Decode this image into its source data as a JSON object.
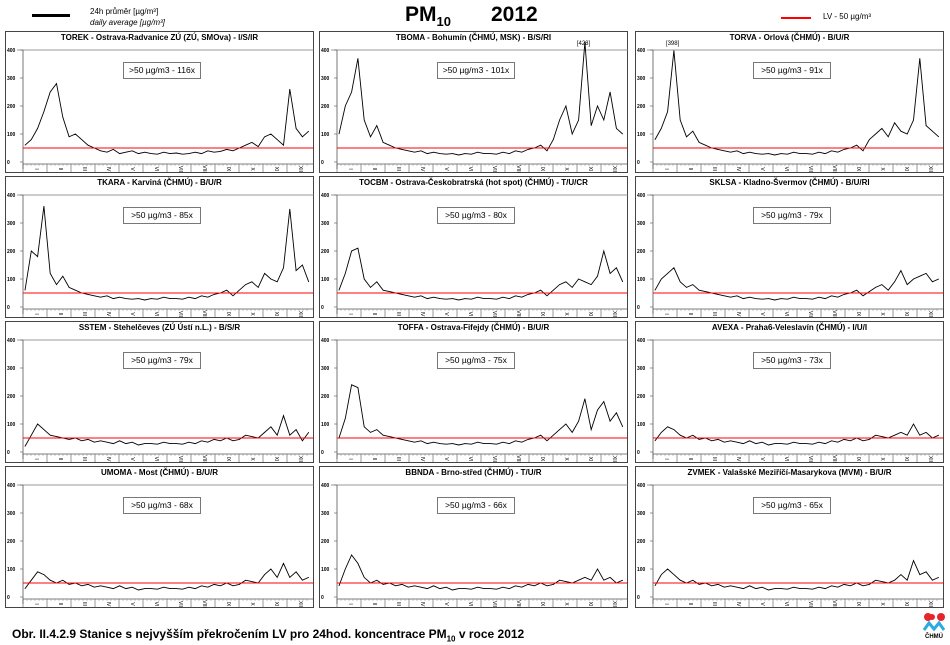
{
  "header": {
    "legend_cz": "24h průměr [µg/m³]",
    "legend_en": "daily average [µg/m³]",
    "title_main": "PM",
    "title_sub": "10",
    "title_year": "2012",
    "lv_label": "LV - 50 µg/m³"
  },
  "caption": {
    "prefix": "Obr. II.4.2.9  Stanice s nejvyšším překročením LV pro 24hod. koncentrace PM",
    "sub": "10",
    "suffix": " v roce 2012"
  },
  "logo": {
    "text": "ČHMÚ"
  },
  "colors": {
    "series": "#000000",
    "limit": "#ff0000"
  },
  "chart_data": {
    "type": "line",
    "title": "PM10 2012",
    "ylabel": "µg/m³",
    "ylim": [
      0,
      400
    ],
    "yticks": [
      "0",
      "100",
      "200",
      "300",
      "400"
    ],
    "months": [
      "I",
      "II",
      "III",
      "IV",
      "V",
      "VI",
      "VII",
      "VIII",
      "IX",
      "X",
      "XI",
      "XII"
    ],
    "limit_value": 50,
    "sample_interval_days": 8,
    "panels": [
      {
        "title": "TOREK - Ostrava-Radvanice ZÚ (ZÚ, SMOva) - I/S/IR",
        "exceed": ">50 µg/m3 - 116x",
        "values": [
          60,
          80,
          120,
          180,
          250,
          280,
          160,
          90,
          100,
          80,
          60,
          50,
          40,
          35,
          45,
          30,
          35,
          40,
          30,
          35,
          30,
          28,
          35,
          30,
          32,
          28,
          30,
          35,
          30,
          40,
          35,
          38,
          45,
          40,
          50,
          60,
          70,
          55,
          90,
          100,
          80,
          60,
          260,
          120,
          90,
          110
        ]
      },
      {
        "title": "TBOMA - Bohumín (ČHMÚ, MSK) - B/S/RI",
        "exceed": ">50 µg/m3 - 101x",
        "peak_label": "[428]",
        "values": [
          100,
          200,
          250,
          370,
          150,
          90,
          130,
          70,
          60,
          50,
          45,
          40,
          35,
          40,
          30,
          35,
          30,
          28,
          30,
          25,
          30,
          28,
          35,
          30,
          30,
          28,
          35,
          30,
          40,
          35,
          45,
          50,
          60,
          40,
          80,
          150,
          200,
          100,
          150,
          428,
          130,
          200,
          150,
          250,
          120,
          100
        ]
      },
      {
        "title": "TORVA - Orlová (ČHMÚ) - B/U/R",
        "exceed": ">50 µg/m3 - 91x",
        "peak_label": "[398]",
        "values": [
          80,
          120,
          180,
          398,
          150,
          90,
          110,
          70,
          60,
          50,
          45,
          40,
          35,
          40,
          30,
          35,
          30,
          28,
          30,
          25,
          30,
          28,
          35,
          30,
          30,
          28,
          35,
          30,
          40,
          35,
          45,
          50,
          60,
          40,
          80,
          100,
          120,
          90,
          140,
          110,
          100,
          150,
          370,
          130,
          110,
          90
        ]
      },
      {
        "title": "TKARA - Karviná (ČHMÚ) - B/U/R",
        "exceed": ">50 µg/m3 - 85x",
        "values": [
          60,
          200,
          180,
          360,
          120,
          80,
          110,
          70,
          60,
          50,
          45,
          40,
          35,
          40,
          30,
          35,
          30,
          28,
          30,
          25,
          30,
          28,
          35,
          30,
          30,
          28,
          35,
          30,
          40,
          35,
          45,
          50,
          60,
          40,
          60,
          80,
          90,
          70,
          120,
          100,
          90,
          140,
          350,
          130,
          150,
          90
        ]
      },
      {
        "title": "TOCBM - Ostrava-Českobratrská (hot spot) (ČHMÚ) - T/U/CR",
        "exceed": ">50 µg/m3 - 80x",
        "values": [
          60,
          120,
          200,
          210,
          100,
          70,
          90,
          60,
          55,
          50,
          45,
          40,
          35,
          40,
          30,
          35,
          30,
          28,
          30,
          25,
          30,
          28,
          35,
          30,
          30,
          28,
          35,
          30,
          40,
          35,
          45,
          50,
          60,
          40,
          60,
          80,
          90,
          70,
          100,
          90,
          80,
          110,
          200,
          120,
          140,
          90
        ]
      },
      {
        "title": "SKLSA - Kladno-Švermov (ČHMÚ) - B/U/RI",
        "exceed": ">50 µg/m3 - 79x",
        "values": [
          60,
          100,
          120,
          140,
          90,
          70,
          80,
          60,
          55,
          50,
          45,
          40,
          35,
          40,
          30,
          35,
          30,
          28,
          30,
          25,
          30,
          28,
          35,
          30,
          30,
          28,
          35,
          30,
          40,
          35,
          45,
          50,
          60,
          40,
          55,
          70,
          80,
          60,
          90,
          130,
          80,
          100,
          110,
          120,
          90,
          100
        ]
      },
      {
        "title": "SSTEM - Stehelčeves (ZÚ Ústí n.L.) - B/S/R",
        "exceed": ">50 µg/m3 - 79x",
        "values": [
          20,
          60,
          100,
          80,
          60,
          55,
          50,
          45,
          50,
          40,
          45,
          35,
          40,
          35,
          30,
          40,
          30,
          35,
          25,
          30,
          30,
          28,
          35,
          30,
          30,
          28,
          35,
          30,
          40,
          35,
          45,
          40,
          50,
          40,
          45,
          60,
          55,
          50,
          70,
          90,
          60,
          130,
          60,
          80,
          40,
          70
        ]
      },
      {
        "title": "TOFFA - Ostrava-Fifejdy (ČHMÚ) - B/U/R",
        "exceed": ">50 µg/m3 - 75x",
        "values": [
          50,
          120,
          240,
          230,
          90,
          70,
          80,
          60,
          55,
          50,
          45,
          40,
          35,
          40,
          30,
          35,
          30,
          28,
          30,
          25,
          30,
          28,
          35,
          30,
          30,
          28,
          35,
          30,
          40,
          35,
          45,
          50,
          60,
          40,
          60,
          80,
          100,
          70,
          110,
          190,
          80,
          150,
          180,
          110,
          140,
          90
        ]
      },
      {
        "title": "AVEXA - Praha6-Veleslavín (ČHMÚ) - I/U/I",
        "exceed": ">50 µg/m3 - 73x",
        "values": [
          40,
          70,
          90,
          80,
          60,
          50,
          60,
          45,
          50,
          40,
          45,
          35,
          40,
          35,
          30,
          40,
          30,
          35,
          25,
          30,
          30,
          28,
          35,
          30,
          30,
          28,
          35,
          30,
          40,
          35,
          45,
          40,
          50,
          40,
          45,
          60,
          55,
          50,
          60,
          70,
          60,
          100,
          60,
          70,
          50,
          60
        ]
      },
      {
        "title": "UMOMA - Most (ČHMÚ) - B/U/R",
        "exceed": ">50 µg/m3 - 68x",
        "values": [
          30,
          60,
          90,
          80,
          60,
          50,
          60,
          45,
          50,
          40,
          45,
          35,
          40,
          35,
          30,
          40,
          30,
          35,
          25,
          30,
          30,
          28,
          35,
          30,
          30,
          28,
          35,
          30,
          40,
          35,
          45,
          40,
          50,
          40,
          45,
          60,
          55,
          50,
          80,
          100,
          70,
          120,
          70,
          90,
          60,
          70
        ]
      },
      {
        "title": "BBNDA - Brno-střed (ČHMÚ) - T/U/R",
        "exceed": ">50 µg/m3 - 66x",
        "values": [
          40,
          100,
          150,
          120,
          70,
          50,
          60,
          45,
          50,
          40,
          45,
          35,
          40,
          35,
          30,
          40,
          30,
          35,
          25,
          30,
          30,
          28,
          35,
          30,
          30,
          28,
          35,
          30,
          40,
          35,
          45,
          40,
          50,
          40,
          45,
          60,
          55,
          50,
          60,
          70,
          60,
          100,
          60,
          70,
          50,
          60
        ]
      },
      {
        "title": "ZVMEK - Valašské Meziříčí-Masarykova (MVM) - B/U/R",
        "exceed": ">50 µg/m3 - 65x",
        "values": [
          40,
          80,
          100,
          80,
          60,
          50,
          60,
          45,
          50,
          40,
          45,
          35,
          40,
          35,
          30,
          40,
          30,
          35,
          25,
          30,
          30,
          28,
          35,
          30,
          30,
          28,
          35,
          30,
          40,
          35,
          45,
          40,
          50,
          40,
          45,
          60,
          55,
          50,
          60,
          80,
          60,
          130,
          80,
          90,
          60,
          70
        ]
      }
    ]
  }
}
